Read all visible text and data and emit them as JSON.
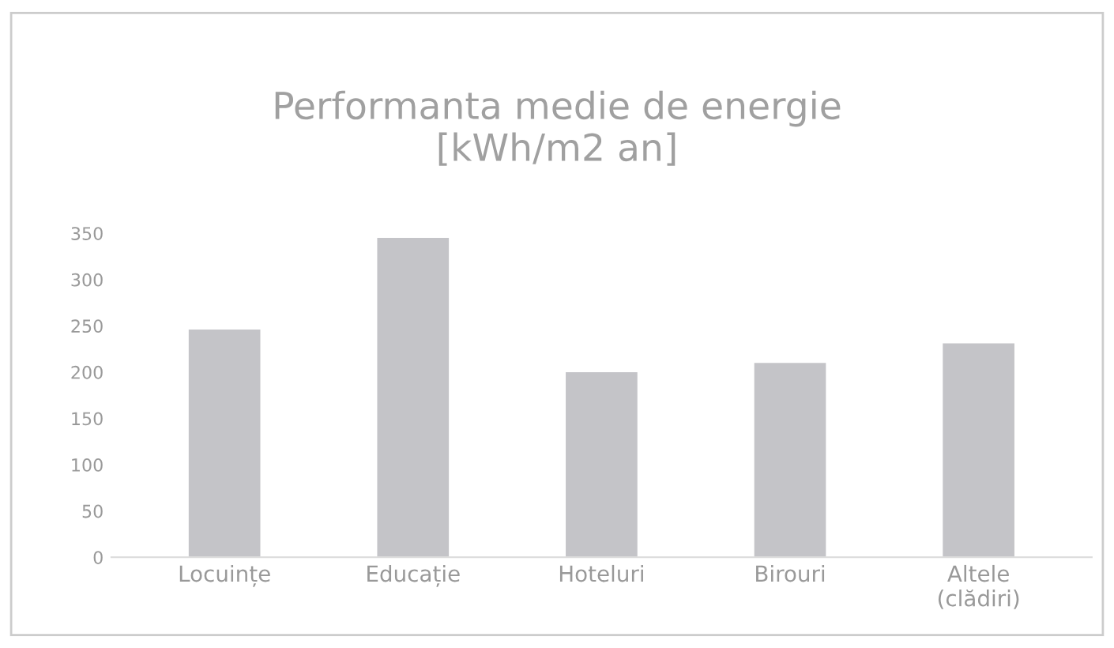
{
  "chart_data": {
    "type": "bar",
    "title": "Performanta medie de energie\n[kWh/m2 an]",
    "categories": [
      "Locuințe",
      "Educație",
      "Hoteluri",
      "Birouri",
      "Altele\n(clădiri)"
    ],
    "values": [
      246,
      345,
      200,
      210,
      231
    ],
    "color": "#c4c4c8",
    "ylim": [
      0,
      350
    ],
    "yticks": [
      0,
      50,
      100,
      150,
      200,
      250,
      300,
      350
    ],
    "grid": false,
    "legend": false
  }
}
